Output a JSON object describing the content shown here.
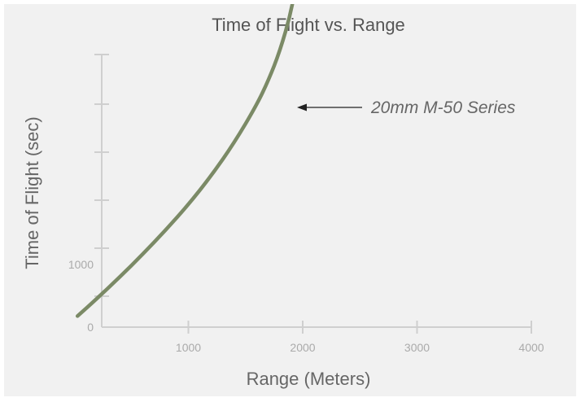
{
  "chart_data": {
    "type": "line",
    "title": "Time of Flight vs. Range",
    "xlabel": "Range (Meters)",
    "ylabel": "Time of Flight (sec)",
    "xlim": [
      0,
      4000
    ],
    "ylim": [
      0,
      5000
    ],
    "x_ticks": [
      1000,
      2000,
      3000,
      4000
    ],
    "y_ticks": [
      0,
      500,
      1000,
      1500,
      2000,
      2500,
      3000
    ],
    "x_tick_labels": [
      "1000",
      "2000",
      "3000",
      "4000"
    ],
    "y_tick_labels": [
      "0",
      "",
      "1000",
      "",
      "",
      "",
      ""
    ],
    "grid": false,
    "colors": {
      "series": "#7b8a66",
      "axis": "#cfcfcf"
    },
    "series": [
      {
        "name": "20mm M-50 Series",
        "x": [
          30,
          200,
          400,
          600,
          800,
          1000,
          1200,
          1400,
          1600,
          1700,
          1800,
          1900,
          1960
        ],
        "y": [
          115,
          295,
          520,
          755,
          1005,
          1270,
          1570,
          1910,
          2310,
          2560,
          2860,
          3270,
          3700
        ]
      }
    ],
    "annotations": [
      {
        "text": "20mm M-50 Series",
        "target_x": 1900,
        "target_y": 3270
      }
    ]
  }
}
